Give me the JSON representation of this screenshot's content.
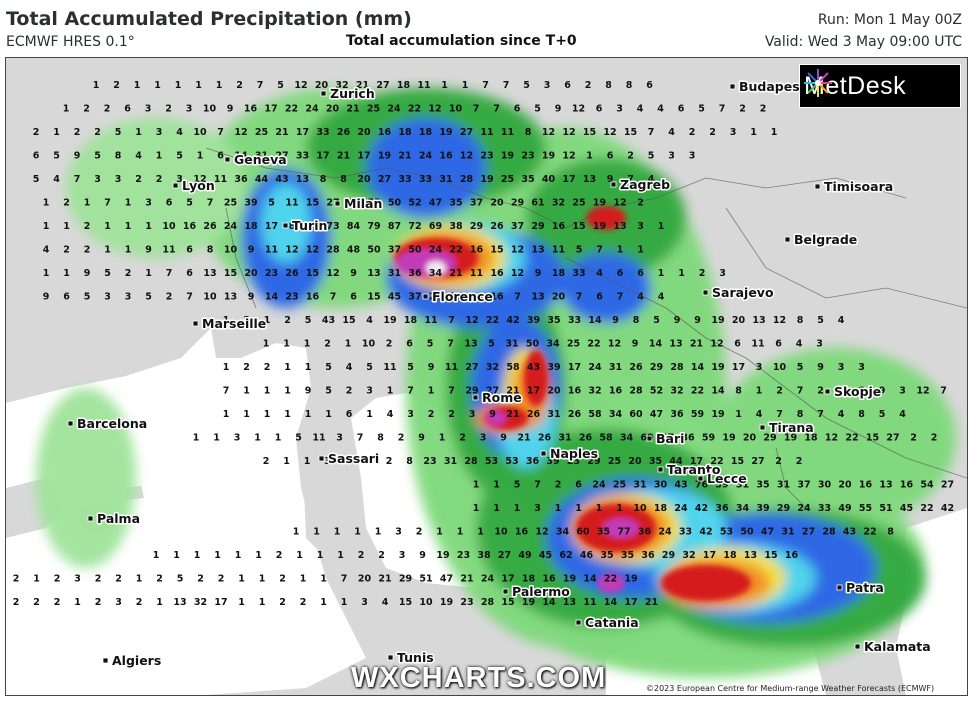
{
  "header": {
    "title": "Total Accumulated Precipitation (mm)",
    "model": "ECMWF HRES 0.1°",
    "subtitle": "Total accumulation since T+0",
    "run": "Run: Mon 1 May 00Z",
    "valid": "Valid: Wed 3 May 09:00 UTC"
  },
  "logo": {
    "text": "MetDesk",
    "icon": "metdesk-starburst-icon"
  },
  "watermark": "WXCHARTS.COM",
  "copyright": "©2023 European Centre for Medium-range Weather Forecasts (ECMWF)",
  "colors": {
    "land": "#d9d9d9",
    "sea": "#ffffff",
    "light_green": "#7ed97a",
    "green": "#2fa83a",
    "dark_green": "#0f7a2b",
    "blue": "#2563e6",
    "cyan": "#49d3ee",
    "yellow": "#f5e33a",
    "orange": "#f28a1c",
    "red": "#d41b1b",
    "magenta": "#c23ab8",
    "white_peak": "#f4e8f4"
  },
  "cities": [
    {
      "name": "Zurich"
    },
    {
      "name": "Geneva"
    },
    {
      "name": "Lyon"
    },
    {
      "name": "Milan"
    },
    {
      "name": "Turin"
    },
    {
      "name": "Marseille"
    },
    {
      "name": "Florence"
    },
    {
      "name": "Rome"
    },
    {
      "name": "Naples"
    },
    {
      "name": "Bari"
    },
    {
      "name": "Taranto"
    },
    {
      "name": "Lecce"
    },
    {
      "name": "Palermo"
    },
    {
      "name": "Catania"
    },
    {
      "name": "Sassari"
    },
    {
      "name": "Barcelona"
    },
    {
      "name": "Palma"
    },
    {
      "name": "Algiers"
    },
    {
      "name": "Tunis"
    },
    {
      "name": "Budapest"
    },
    {
      "name": "Zagreb"
    },
    {
      "name": "Belgrade"
    },
    {
      "name": "Timisoara"
    },
    {
      "name": "Sarajevo"
    },
    {
      "name": "Tirana"
    },
    {
      "name": "Skopje"
    },
    {
      "name": "Patra"
    },
    {
      "name": "Kalamata"
    }
  ],
  "precip_rows": [
    "1 2 1 1 1 1 1 2 7 5 12 20 32 21 27 18 11 1 1 7 7 5 3 6 2 8 8 6",
    "1 2 2 6 3 2 3 10 9 16 17 22 24 20 21 25 24 22 12 10 7 7 6 5 9 12 6 3 4 4 6 5 7 2 2",
    "2 1 2 2 5 1 3 4 10 7 12 25 21 17 33 26 20 16 18 18 19 27 11 11 8 12 12 15 12 15 7 4 2 2 3 1 1",
    "6 5 9 5 8 4 1 5 1 6 14 31 27 33 17 21 17 19 21 24 16 12 23 19 23 19 12 1 6 2 5 3 3",
    "5 4 7 3 3 2 2 3 12 11 36 44 43 13 8 8 20 27 33 33 31 28 19 25 35 40 17 13 9 7 4",
    "1 2 1 7 1 3 6 5 7 25 39 5 11 15 27 45 55 50 52 47 35 37 20 29 61 32 25 19 12 2",
    "1 1 2 1 1 1 10 16 26 24 18 17 8 39 73 84 79 87 72 69 38 29 26 37 29 16 15 19 13 3 1",
    "4 2 2 1 1 9 11 6 8 10 9 11 12 12 28 48 50 37 50 24 22 16 15 12 13 11 5 7 1 1",
    "1 1 9 5 2 1 7 6 13 15 20 23 26 15 12 9 13 31 36 34 21 11 16 12 9 18 33 4 6 6 1 1 2 3",
    "9 6 5 3 3 5 2 7 10 13 9 14 23 16 7 6 15 45 37 26 16 14 16 7 13 20 7 6 7 4 4",
    "1 3 1 2 5 43 15 4 19 18 11 7 12 22 42 39 35 33 14 9 8 5 9 9 19 20 13 12 8 5 4",
    "1 1 1 2 1 10 2 6 5 7 13 5 31 50 34 25 22 12 9 14 13 21 12 6 11 6 4 3",
    "1 2 2 1 1 5 4 5 11 5 9 11 27 32 58 43 39 17 24 31 26 29 28 14 19 17 3 10 5 9 3 3",
    "7 1 1 1 9 5 2 3 1 7 1 7 29 27 21 17 20 16 32 16 28 52 32 22 14 8 1 2 7 2 6 8 9 3 12 7",
    "1 1 1 1 1 1 6 1 4 3 2 2 3 9 21 26 31 26 58 34 60 47 36 59 19 1 4 7 8 7 4 8 5 4",
    "1 1 3 1 1 5 11 3 7 8 2 9 1 2 3 9 21 26 31 26 58 34 60 47 36 59 19 20 29 19 18 12 22 15 27 2 2",
    "2 1 1 3 10 3 2 8 23 31 28 53 53 36 39 23 29 25 20 35 44 17 22 15 27 2 2",
    "1 1 5 7 2 6 24 25 31 30 43 76 39 31 35 31 37 30 20 16 13 16 54 27 5",
    "1 1 1 3 1 1 1 1 10 18 24 42 36 34 39 29 24 33 49 55 51 45 22 42 25 21 8 27",
    "1 1 1 1 1 3 2 1 1 1 10 16 12 34 60 35 77 36 24 33 42 53 50 47 31 27 28 43 22 8",
    "1 1 1 1 1 1 2 1 1 1 2 2 3 9 19 23 38 27 49 45 62 46 35 35 36 29 32 17 18 13 15 16",
    "2 1 2 3 2 2 1 2 5 2 2 1 1 2 1 1 7 20 21 29 51 47 21 24 17 18 16 19 14 22 19",
    "2 2 2 1 2 3 2 1 13 32 17 1 1 2 2 1 1 3 4 15 10 19 23 28 15 19 14 13 11 14 17 21"
  ]
}
